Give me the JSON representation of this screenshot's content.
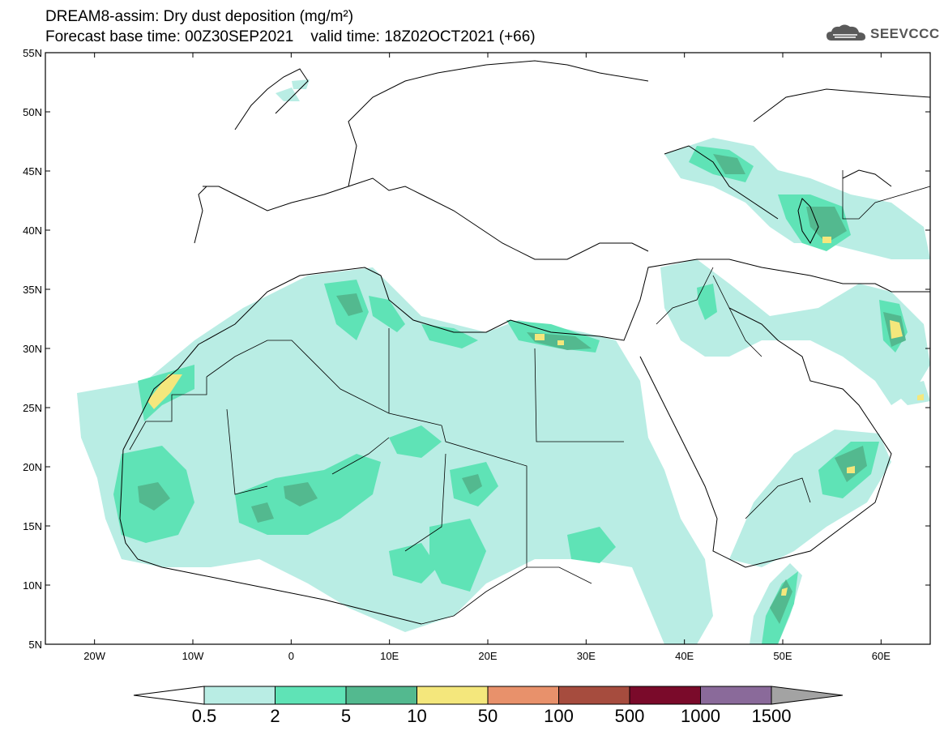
{
  "header": {
    "title_line1": "DREAM8-assim: Dry dust deposition (mg/m²)",
    "base_time_label": "Forecast base time: 00Z30SEP2021",
    "valid_time_label": "valid time: 18Z02OCT2021 (+66)"
  },
  "logo": {
    "text": "SEEVCCC",
    "icon": "cloud-icon"
  },
  "axes": {
    "lat_ticks": [
      "55N",
      "50N",
      "45N",
      "40N",
      "35N",
      "30N",
      "25N",
      "20N",
      "15N",
      "10N",
      "5N"
    ],
    "lon_ticks": [
      "20W",
      "10W",
      "0",
      "10E",
      "20E",
      "30E",
      "40E",
      "50E",
      "60E"
    ],
    "lon_range": [
      -25,
      65
    ],
    "lat_range": [
      5,
      55
    ]
  },
  "colorbar": {
    "labels": [
      "0.5",
      "2",
      "5",
      "10",
      "50",
      "100",
      "500",
      "1000",
      "1500"
    ],
    "colors": [
      "#b9ede4",
      "#5fe3b6",
      "#53b98f",
      "#f4e77c",
      "#e8916b",
      "#a64c3e",
      "#7a0a2a",
      "#8a6a9a"
    ],
    "end_low_color": "#ffffff",
    "end_high_color": "#a3a3a3"
  }
}
